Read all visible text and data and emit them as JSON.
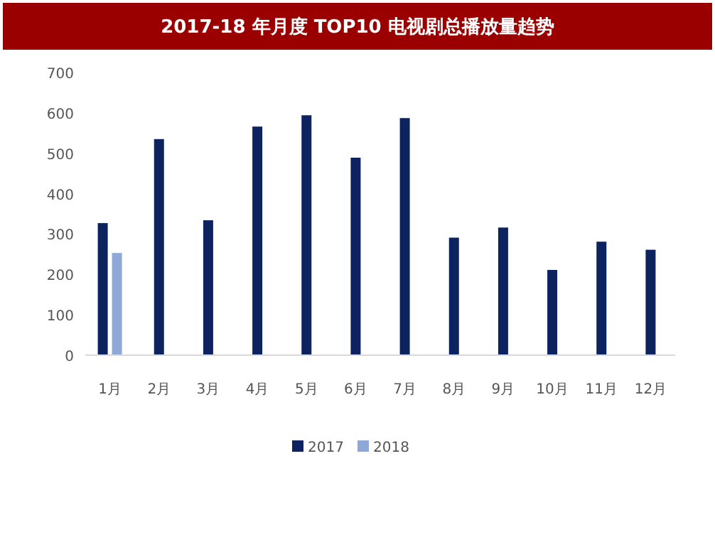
{
  "chart_data": {
    "type": "bar",
    "title": "2017-18 年月度 TOP10 电视剧总播放量趋势",
    "categories": [
      "1月",
      "2月",
      "3月",
      "4月",
      "5月",
      "6月",
      "7月",
      "8月",
      "9月",
      "10月",
      "11月",
      "12月"
    ],
    "series": [
      {
        "name": "2017",
        "color": "#0d2360",
        "values": [
          327,
          535,
          334,
          566,
          594,
          489,
          587,
          291,
          316,
          211,
          281,
          261
        ]
      },
      {
        "name": "2018",
        "color": "#8ea9d8",
        "values": [
          253,
          null,
          null,
          null,
          null,
          null,
          null,
          null,
          null,
          null,
          null,
          null
        ]
      }
    ],
    "ylim": [
      0,
      700
    ],
    "yticks": [
      0,
      100,
      200,
      300,
      400,
      500,
      600,
      700
    ],
    "grid": false,
    "legend": "bottom"
  }
}
